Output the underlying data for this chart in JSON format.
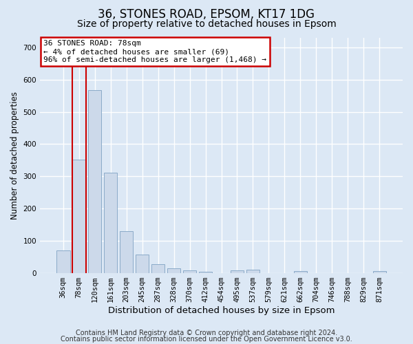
{
  "title": "36, STONES ROAD, EPSOM, KT17 1DG",
  "subtitle": "Size of property relative to detached houses in Epsom",
  "xlabel": "Distribution of detached houses by size in Epsom",
  "ylabel": "Number of detached properties",
  "categories": [
    "36sqm",
    "78sqm",
    "120sqm",
    "161sqm",
    "203sqm",
    "245sqm",
    "287sqm",
    "328sqm",
    "370sqm",
    "412sqm",
    "454sqm",
    "495sqm",
    "537sqm",
    "579sqm",
    "621sqm",
    "662sqm",
    "704sqm",
    "746sqm",
    "788sqm",
    "829sqm",
    "871sqm"
  ],
  "values": [
    70,
    352,
    567,
    312,
    130,
    57,
    27,
    15,
    7,
    4,
    0,
    8,
    9,
    0,
    0,
    5,
    0,
    0,
    0,
    0,
    5
  ],
  "bar_color": "#ccd9ea",
  "bar_edge_color": "#8aaac8",
  "highlight_bar_index": 1,
  "highlight_edge_color": "#cc0000",
  "annotation_text": "36 STONES ROAD: 78sqm\n← 4% of detached houses are smaller (69)\n96% of semi-detached houses are larger (1,468) →",
  "annotation_box_facecolor": "white",
  "annotation_box_edgecolor": "#cc0000",
  "ylim": [
    0,
    730
  ],
  "yticks": [
    0,
    100,
    200,
    300,
    400,
    500,
    600,
    700
  ],
  "bg_color": "#dce8f5",
  "plot_bg_color": "#dce8f5",
  "grid_color": "white",
  "footer_line1": "Contains HM Land Registry data © Crown copyright and database right 2024.",
  "footer_line2": "Contains public sector information licensed under the Open Government Licence v3.0.",
  "title_fontsize": 12,
  "subtitle_fontsize": 10,
  "xlabel_fontsize": 9.5,
  "ylabel_fontsize": 8.5,
  "tick_fontsize": 7.5,
  "annot_fontsize": 8,
  "footer_fontsize": 7
}
